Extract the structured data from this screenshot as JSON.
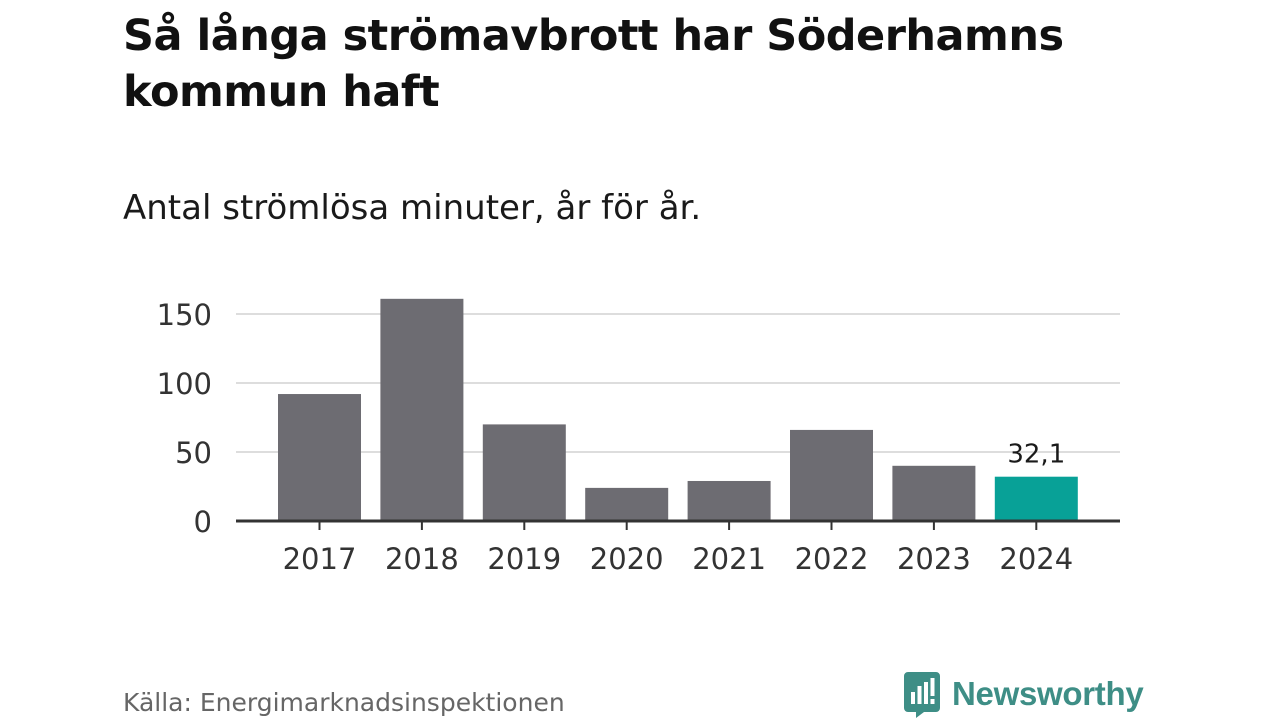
{
  "title": "Så långa strömavbrott har Söderhamns kommun haft",
  "subtitle": "Antal strömlösa minuter, år för år.",
  "source": "Källa: Energimarknadsinspektionen",
  "brand": {
    "name": "Newsworthy",
    "icon": "newsworthy-logo-icon",
    "color": "#3e8e86"
  },
  "colors": {
    "bar": "#6d6c72",
    "highlight": "#08a197",
    "grid": "#dddddd",
    "axis": "#333333"
  },
  "chart_data": {
    "type": "bar",
    "categories": [
      "2017",
      "2018",
      "2019",
      "2020",
      "2021",
      "2022",
      "2023",
      "2024"
    ],
    "values": [
      92,
      161,
      70,
      24,
      29,
      66,
      40,
      32.1
    ],
    "highlight_index": 7,
    "data_labels": [
      {
        "index": 7,
        "text": "32,1"
      }
    ],
    "y_ticks": [
      0,
      50,
      100,
      150
    ],
    "ylim": [
      0,
      165
    ],
    "grid": true,
    "legend": "none"
  }
}
